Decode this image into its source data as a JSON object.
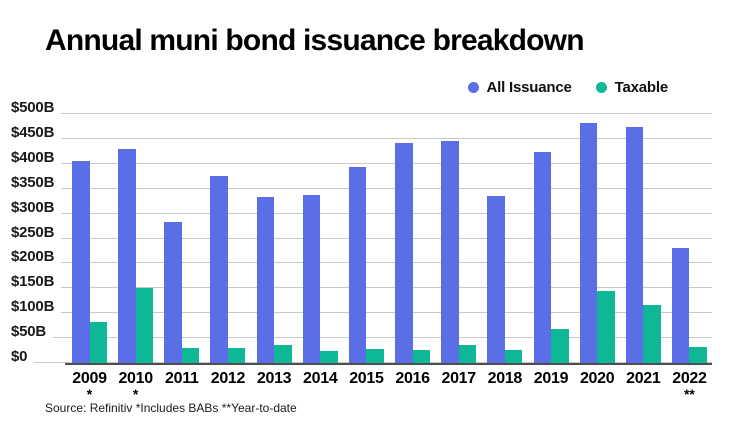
{
  "title": "Annual muni bond issuance breakdown",
  "source_note": "Source: Refinitiv *Includes BABs **Year-to-date",
  "legend": {
    "items": [
      {
        "label": "All Issuance",
        "color": "#5a6ee6"
      },
      {
        "label": "Taxable",
        "color": "#0eb896"
      }
    ]
  },
  "colors": {
    "all_issuance": "#5a6ee6",
    "taxable": "#0eb896",
    "gridline": "#c9c9c9",
    "axis_line": "#4d4d4d",
    "text": "#000000",
    "background": "#ffffff"
  },
  "y_axis": {
    "tick_labels": [
      "$500B",
      "$450B",
      "$400B",
      "$350B",
      "$300B",
      "$250B",
      "$200B",
      "$150B",
      "$100B",
      "$50B",
      "$0"
    ],
    "min": 0,
    "max": 500,
    "step": 50
  },
  "chart_data": {
    "type": "bar",
    "title": "Annual muni bond issuance breakdown",
    "unit": "billions of dollars",
    "categories": [
      "2009",
      "2010",
      "2011",
      "2012",
      "2013",
      "2014",
      "2015",
      "2016",
      "2017",
      "2018",
      "2019",
      "2020",
      "2021",
      "2022"
    ],
    "category_marks": [
      "*",
      "*",
      "",
      "",
      "",
      "",
      "",
      "",
      "",
      "",
      "",
      "",
      "",
      "**"
    ],
    "series": [
      {
        "name": "All Issuance",
        "color": "#5a6ee6",
        "values": [
          408,
          432,
          285,
          378,
          335,
          340,
          396,
          444,
          448,
          338,
          426,
          484,
          475,
          232
        ]
      },
      {
        "name": "Taxable",
        "color": "#0eb896",
        "values": [
          85,
          152,
          32,
          32,
          38,
          26,
          30,
          29,
          39,
          29,
          71,
          146,
          118,
          34
        ]
      }
    ],
    "ylim": [
      0,
      500
    ],
    "grid": "horizontal",
    "legend_position": "top-right"
  }
}
